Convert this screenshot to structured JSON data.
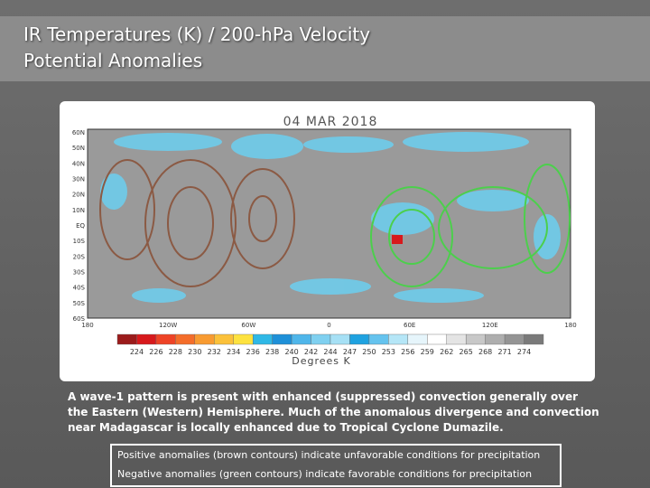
{
  "header": {
    "title_lines": [
      "IR Temperatures (K) / 200-hPa Velocity",
      "Potential Anomalies"
    ]
  },
  "figure": {
    "date": "04 MAR 2018",
    "lat_labels": [
      "60N",
      "50N",
      "40N",
      "30N",
      "20N",
      "10N",
      "EQ",
      "10S",
      "20S",
      "30S",
      "40S",
      "50S",
      "60S"
    ],
    "lon_labels": [
      "180",
      "120W",
      "60W",
      "0",
      "60E",
      "120E",
      "180"
    ],
    "colorbar": {
      "colors": [
        "#9b1b1b",
        "#d7191c",
        "#ee4326",
        "#f46d2a",
        "#f89b31",
        "#fbc13a",
        "#fde23f",
        "#2fb8e6",
        "#1e90d8",
        "#4fb6ea",
        "#7fd0f0",
        "#a6e0f5",
        "#1fa2e0",
        "#65c3ee",
        "#b5e6f7",
        "#e6f5fb",
        "#ffffff",
        "#e4e4e4",
        "#c8c8c8",
        "#aeaeae",
        "#949494",
        "#7a7a7a"
      ],
      "ticks": [
        224,
        226,
        228,
        230,
        232,
        234,
        236,
        238,
        240,
        242,
        244,
        247,
        250,
        253,
        256,
        259,
        262,
        265,
        268,
        271,
        274
      ],
      "label": "Degrees K"
    }
  },
  "description": "A wave-1 pattern is present with enhanced (suppressed) convection generally over the Eastern (Western) Hemisphere. Much of the anomalous divergence and convection near Madagascar is locally enhanced due to Tropical Cyclone Dumazile.",
  "notes": [
    "Positive anomalies (brown contours) indicate unfavorable conditions for precipitation",
    "Negative anomalies (green contours) indicate favorable conditions for precipitation"
  ]
}
